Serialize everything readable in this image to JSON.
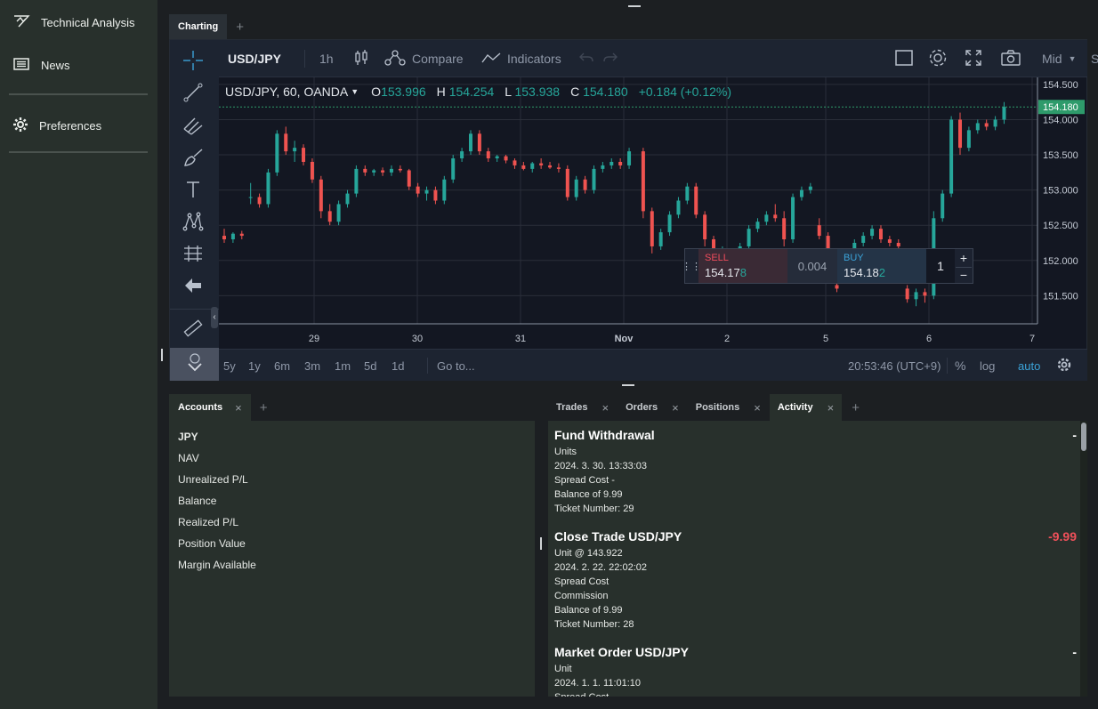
{
  "sidebar": {
    "items": [
      {
        "label": "Technical Analysis",
        "icon": "technical-analysis-icon"
      },
      {
        "label": "News",
        "icon": "news-icon"
      },
      {
        "label": "Preferences",
        "icon": "gear-icon"
      }
    ]
  },
  "chart_tabs": {
    "active": "Charting",
    "add": "+"
  },
  "chart_toolbar": {
    "symbol": "USD/JPY",
    "interval": "1h",
    "compare": "Compare",
    "indicators": "Indicators",
    "price_source": "Mid",
    "saved": "Saved"
  },
  "legend": {
    "title": "USD/JPY, 60, OANDA",
    "o_label": "O",
    "o": "153.996",
    "h_label": "H",
    "h": "154.254",
    "l_label": "L",
    "l": "153.938",
    "c_label": "C",
    "c": "154.180",
    "change": "+0.184 (+0.12%)"
  },
  "trade_widget": {
    "sell_label": "SELL",
    "sell_main": "154.17",
    "sell_pip": "8",
    "spread": "0.004",
    "buy_label": "BUY",
    "buy_main": "154.18",
    "buy_pip": "2",
    "quantity": "1",
    "plus": "+",
    "minus": "−"
  },
  "chart_data": {
    "type": "candlestick",
    "y_ticks": [
      "154.500",
      "154.000",
      "153.500",
      "153.000",
      "152.500",
      "152.000",
      "151.500"
    ],
    "x_ticks": [
      "29",
      "30",
      "31",
      "Nov",
      "2",
      "5",
      "6",
      "7"
    ],
    "current_price": "154.180",
    "ylim": [
      151.1,
      154.6
    ],
    "candles_note_hidden": "",
    "series": [
      [
        152.35,
        152.45,
        152.25,
        152.3
      ],
      [
        152.3,
        152.4,
        152.25,
        152.38
      ],
      [
        152.38,
        152.42,
        152.3,
        152.35
      ],
      [
        152.9,
        153.1,
        152.8,
        152.9
      ],
      [
        152.9,
        152.95,
        152.75,
        152.8
      ],
      [
        152.8,
        153.3,
        152.75,
        153.25
      ],
      [
        153.25,
        153.85,
        153.2,
        153.8
      ],
      [
        153.8,
        153.9,
        153.5,
        153.55
      ],
      [
        153.55,
        153.7,
        153.4,
        153.6
      ],
      [
        153.6,
        153.65,
        153.35,
        153.4
      ],
      [
        153.4,
        153.45,
        153.1,
        153.15
      ],
      [
        153.15,
        153.2,
        152.6,
        152.7
      ],
      [
        152.7,
        152.8,
        152.5,
        152.55
      ],
      [
        152.55,
        152.85,
        152.5,
        152.8
      ],
      [
        152.8,
        153.0,
        152.75,
        152.95
      ],
      [
        152.95,
        153.35,
        152.9,
        153.3
      ],
      [
        153.3,
        153.35,
        153.2,
        153.25
      ],
      [
        153.25,
        153.3,
        153.2,
        153.28
      ],
      [
        153.28,
        153.32,
        153.2,
        153.25
      ],
      [
        153.25,
        153.35,
        153.2,
        153.3
      ],
      [
        153.3,
        153.35,
        153.25,
        153.28
      ],
      [
        153.28,
        153.3,
        153.0,
        153.05
      ],
      [
        153.05,
        153.1,
        152.9,
        152.95
      ],
      [
        152.95,
        153.05,
        152.85,
        153.0
      ],
      [
        153.0,
        153.05,
        152.8,
        152.85
      ],
      [
        152.85,
        153.2,
        152.8,
        153.15
      ],
      [
        153.15,
        153.5,
        153.1,
        153.45
      ],
      [
        153.45,
        153.6,
        153.4,
        153.55
      ],
      [
        153.55,
        153.85,
        153.5,
        153.8
      ],
      [
        153.8,
        153.85,
        153.5,
        153.55
      ],
      [
        153.55,
        153.6,
        153.4,
        153.45
      ],
      [
        153.45,
        153.5,
        153.4,
        153.48
      ],
      [
        153.48,
        153.5,
        153.38,
        153.42
      ],
      [
        153.42,
        153.45,
        153.3,
        153.35
      ],
      [
        153.35,
        153.4,
        153.28,
        153.3
      ],
      [
        153.3,
        153.4,
        153.25,
        153.38
      ],
      [
        153.38,
        153.45,
        153.3,
        153.35
      ],
      [
        153.35,
        153.4,
        153.3,
        153.32
      ],
      [
        153.32,
        153.38,
        153.25,
        153.3
      ],
      [
        153.3,
        153.35,
        152.85,
        152.9
      ],
      [
        152.9,
        153.2,
        152.85,
        153.15
      ],
      [
        153.15,
        153.2,
        152.95,
        153.0
      ],
      [
        153.0,
        153.35,
        152.95,
        153.3
      ],
      [
        153.3,
        153.4,
        153.25,
        153.35
      ],
      [
        153.35,
        153.45,
        153.3,
        153.4
      ],
      [
        153.4,
        153.45,
        153.3,
        153.35
      ],
      [
        153.35,
        153.6,
        153.3,
        153.55
      ],
      [
        153.55,
        153.6,
        152.6,
        152.7
      ],
      [
        152.7,
        152.75,
        152.1,
        152.2
      ],
      [
        152.2,
        152.45,
        152.15,
        152.4
      ],
      [
        152.4,
        152.7,
        152.35,
        152.65
      ],
      [
        152.65,
        152.9,
        152.6,
        152.85
      ],
      [
        152.85,
        153.1,
        152.8,
        153.05
      ],
      [
        153.05,
        153.1,
        152.6,
        152.65
      ],
      [
        152.65,
        152.7,
        152.2,
        152.3
      ],
      [
        152.3,
        152.35,
        151.9,
        152.0
      ],
      [
        152.0,
        152.2,
        151.95,
        152.1
      ],
      [
        152.1,
        152.15,
        152.0,
        152.05
      ],
      [
        152.05,
        152.25,
        152.0,
        152.2
      ],
      [
        152.2,
        152.5,
        152.15,
        152.45
      ],
      [
        152.45,
        152.6,
        152.4,
        152.55
      ],
      [
        152.55,
        152.7,
        152.5,
        152.65
      ],
      [
        152.65,
        152.8,
        152.55,
        152.6
      ],
      [
        152.6,
        152.7,
        152.2,
        152.3
      ],
      [
        152.3,
        152.95,
        152.25,
        152.9
      ],
      [
        152.9,
        153.05,
        152.85,
        153.0
      ],
      [
        153.0,
        153.1,
        152.95,
        153.05
      ],
      [
        152.5,
        152.6,
        152.3,
        152.35
      ],
      [
        152.35,
        152.4,
        152.1,
        152.15
      ],
      [
        151.65,
        151.7,
        151.55,
        151.6
      ],
      [
        151.9,
        152.0,
        151.8,
        151.95
      ],
      [
        151.95,
        152.3,
        151.9,
        152.25
      ],
      [
        152.25,
        152.4,
        152.2,
        152.35
      ],
      [
        152.35,
        152.5,
        152.3,
        152.45
      ],
      [
        152.45,
        152.5,
        152.25,
        152.3
      ],
      [
        152.3,
        152.35,
        152.2,
        152.25
      ],
      [
        152.25,
        152.3,
        152.1,
        152.2
      ],
      [
        151.6,
        151.65,
        151.4,
        151.45
      ],
      [
        151.45,
        151.6,
        151.35,
        151.55
      ],
      [
        151.55,
        151.6,
        151.4,
        151.5
      ],
      [
        151.5,
        152.7,
        151.45,
        152.6
      ],
      [
        152.6,
        153.0,
        152.55,
        152.95
      ],
      [
        152.95,
        154.05,
        152.9,
        154.0
      ],
      [
        154.0,
        154.1,
        153.5,
        153.6
      ],
      [
        153.6,
        153.9,
        153.55,
        153.85
      ],
      [
        153.85,
        154.0,
        153.8,
        153.95
      ],
      [
        153.95,
        154.0,
        153.85,
        153.9
      ],
      [
        153.9,
        154.05,
        153.85,
        154.0
      ],
      [
        154.0,
        154.25,
        153.94,
        154.18
      ]
    ]
  },
  "time_ranges": [
    "5y",
    "1y",
    "6m",
    "3m",
    "1m",
    "5d",
    "1d"
  ],
  "goto": "Go to...",
  "clock": "20:53:46 (UTC+9)",
  "scale_opts": {
    "percent": "%",
    "log": "log",
    "auto": "auto"
  },
  "accounts": {
    "tab": "Accounts",
    "close": "×",
    "add": "+",
    "currency": "JPY",
    "rows": [
      "NAV",
      "Unrealized P/L",
      "Balance",
      "Realized P/L",
      "Position Value",
      "Margin Available"
    ]
  },
  "activity_tabs": {
    "tabs": [
      "Trades",
      "Orders",
      "Positions",
      "Activity"
    ],
    "active": "Activity",
    "close": "×",
    "add": "+"
  },
  "activity": [
    {
      "title": "Fund Withdrawal",
      "amount": "-",
      "lines": [
        "Units",
        "2024. 3. 30. 13:33:03",
        "Spread Cost -",
        "Balance of 9.99",
        "Ticket Number: 29"
      ]
    },
    {
      "title": "Close Trade USD/JPY",
      "amount": "-9.99",
      "lines": [
        "Unit @ 143.922",
        "2024. 2. 22. 22:02:02",
        "Spread Cost",
        "Commission",
        "Balance of 9.99",
        "Ticket Number: 28"
      ]
    },
    {
      "title": "Market Order USD/JPY",
      "amount": "-",
      "lines": [
        "Unit",
        "2024. 1. 1. 11:01:10",
        "Spread Cost"
      ]
    }
  ],
  "colors": {
    "up": "#26a69a",
    "down": "#ef5350",
    "price_tag": "#2e9b6b",
    "accent_blue": "#3ba3d8",
    "sell_red": "#ef4c5c",
    "negative": "#f0505a"
  }
}
